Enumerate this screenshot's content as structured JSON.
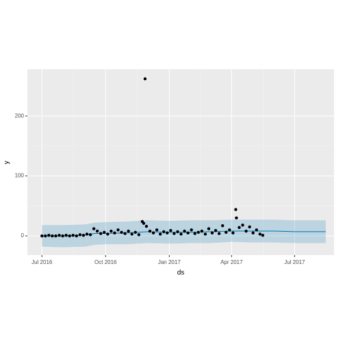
{
  "chart_data": {
    "type": "scatter",
    "x_label": "ds",
    "y_label": "y",
    "xlim": [
      "2016-06-10",
      "2017-08-27"
    ],
    "ylim": [
      -32,
      278
    ],
    "xticks": [
      {
        "value": "2016-07-01",
        "label": "Jul 2016"
      },
      {
        "value": "2016-10-01",
        "label": "Oct 2016"
      },
      {
        "value": "2017-01-01",
        "label": "Jan 2017"
      },
      {
        "value": "2017-04-01",
        "label": "Apr 2017"
      },
      {
        "value": "2017-07-01",
        "label": "Jul 2017"
      }
    ],
    "yticks": [
      0,
      100,
      200
    ],
    "grid": true,
    "series": [
      {
        "color": "#000000",
        "x": [
          "2016-07-01",
          "2016-07-06",
          "2016-07-11",
          "2016-07-16",
          "2016-07-21",
          "2016-07-26",
          "2016-07-31",
          "2016-08-05",
          "2016-08-10",
          "2016-08-15",
          "2016-08-20",
          "2016-08-25",
          "2016-08-30",
          "2016-09-04",
          "2016-09-09",
          "2016-09-14",
          "2016-09-19",
          "2016-09-24",
          "2016-09-29",
          "2016-10-04",
          "2016-10-09",
          "2016-10-14",
          "2016-10-19",
          "2016-10-24",
          "2016-10-29",
          "2016-11-03",
          "2016-11-08",
          "2016-11-13",
          "2016-11-18",
          "2016-11-23",
          "2016-11-25",
          "2016-11-27",
          "2016-11-29",
          "2016-12-04",
          "2016-12-09",
          "2016-12-14",
          "2016-12-19",
          "2016-12-24",
          "2016-12-29",
          "2017-01-03",
          "2017-01-08",
          "2017-01-13",
          "2017-01-18",
          "2017-01-23",
          "2017-01-28",
          "2017-02-02",
          "2017-02-07",
          "2017-02-12",
          "2017-02-17",
          "2017-02-22",
          "2017-02-27",
          "2017-03-04",
          "2017-03-09",
          "2017-03-14",
          "2017-03-19",
          "2017-03-24",
          "2017-03-29",
          "2017-04-03",
          "2017-04-07",
          "2017-04-08",
          "2017-04-12",
          "2017-04-17",
          "2017-04-22",
          "2017-04-27",
          "2017-05-02",
          "2017-05-07",
          "2017-05-12",
          "2017-05-16"
        ],
        "values": [
          0,
          0,
          1,
          0,
          0,
          1,
          0,
          1,
          0,
          1,
          0,
          2,
          1,
          3,
          2,
          12,
          8,
          4,
          6,
          3,
          8,
          5,
          10,
          6,
          4,
          8,
          3,
          6,
          2,
          24,
          21,
          262,
          16,
          8,
          5,
          10,
          3,
          7,
          5,
          9,
          4,
          7,
          3,
          8,
          5,
          10,
          4,
          6,
          8,
          3,
          12,
          5,
          9,
          4,
          17,
          6,
          10,
          5,
          44,
          30,
          14,
          18,
          8,
          15,
          5,
          10,
          3,
          1
        ]
      },
      {
        "color": "#0072B2",
        "x": [
          "2016-07-01",
          "2016-08-01",
          "2016-09-01",
          "2016-09-15",
          "2016-10-01",
          "2016-11-01",
          "2016-12-01",
          "2017-01-01",
          "2017-02-01",
          "2017-03-01",
          "2017-04-01",
          "2017-05-01",
          "2017-06-01",
          "2017-07-01",
          "2017-08-15"
        ],
        "values": [
          0,
          0,
          1,
          4,
          4,
          5,
          7,
          6,
          6,
          7,
          8,
          8,
          8,
          7,
          7
        ],
        "lower": [
          -18,
          -19,
          -18,
          -15,
          -14,
          -14,
          -12,
          -13,
          -12,
          -12,
          -10,
          -11,
          -11,
          -12,
          -12
        ],
        "upper": [
          18,
          18,
          19,
          22,
          23,
          24,
          26,
          25,
          26,
          26,
          27,
          27,
          27,
          26,
          26
        ]
      }
    ]
  }
}
